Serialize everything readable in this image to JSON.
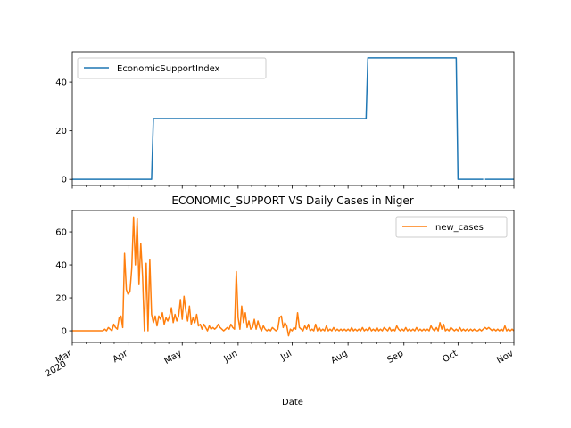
{
  "chart_data": [
    {
      "type": "line",
      "title": "",
      "xlabel": "",
      "ylabel": "",
      "ylim": [
        -2.5,
        52.5
      ],
      "yticks": [
        0,
        20,
        40
      ],
      "xlim": [
        "2020-03-01",
        "2020-11-01"
      ],
      "grid": false,
      "legend_placement": "top-left",
      "series": [
        {
          "name": "EconomicSupportIndex",
          "color": "#1f77b4",
          "points": [
            [
              "2020-03-01",
              0
            ],
            [
              "2020-04-14",
              0
            ],
            [
              "2020-04-15",
              25
            ],
            [
              "2020-08-11",
              25
            ],
            [
              "2020-08-12",
              50
            ],
            [
              "2020-09-30",
              50
            ],
            [
              "2020-10-01",
              0
            ],
            [
              "2020-10-15",
              0
            ],
            null,
            [
              "2020-10-16",
              0
            ],
            [
              "2020-11-01",
              0
            ]
          ]
        }
      ]
    },
    {
      "type": "line",
      "title": "ECONOMIC_SUPPORT VS Daily Cases in Niger",
      "xlabel": "Date",
      "ylabel": "",
      "ylim": [
        -7,
        73
      ],
      "yticks": [
        0,
        20,
        40,
        60
      ],
      "xlim": [
        "2020-03-01",
        "2020-11-01"
      ],
      "xticks": [
        {
          "date": "2020-03-01",
          "label": "Mar",
          "sublabel": "2020"
        },
        {
          "date": "2020-04-01",
          "label": "Apr"
        },
        {
          "date": "2020-05-01",
          "label": "May"
        },
        {
          "date": "2020-06-01",
          "label": "Jun"
        },
        {
          "date": "2020-07-01",
          "label": "Jul"
        },
        {
          "date": "2020-08-01",
          "label": "Aug"
        },
        {
          "date": "2020-09-01",
          "label": "Sep"
        },
        {
          "date": "2020-10-01",
          "label": "Oct"
        },
        {
          "date": "2020-11-01",
          "label": "Nov"
        }
      ],
      "grid": false,
      "legend_placement": "top-right",
      "series": [
        {
          "name": "new_cases",
          "color": "#ff7f0e",
          "points": [
            [
              "2020-03-01",
              0
            ],
            [
              "2020-03-18",
              0
            ],
            [
              "2020-03-19",
              1
            ],
            [
              "2020-03-20",
              0
            ],
            [
              "2020-03-21",
              2
            ],
            [
              "2020-03-22",
              1
            ],
            [
              "2020-03-23",
              0
            ],
            [
              "2020-03-24",
              4
            ],
            [
              "2020-03-25",
              2
            ],
            [
              "2020-03-26",
              1
            ],
            [
              "2020-03-27",
              8
            ],
            [
              "2020-03-28",
              9
            ],
            [
              "2020-03-29",
              2
            ],
            [
              "2020-03-30",
              47
            ],
            [
              "2020-03-31",
              25
            ],
            [
              "2020-04-01",
              22
            ],
            [
              "2020-04-02",
              24
            ],
            [
              "2020-04-03",
              38
            ],
            [
              "2020-04-04",
              69
            ],
            [
              "2020-04-05",
              40
            ],
            [
              "2020-04-06",
              68
            ],
            [
              "2020-04-07",
              28
            ],
            [
              "2020-04-08",
              53
            ],
            [
              "2020-04-09",
              33
            ],
            [
              "2020-04-10",
              0
            ],
            [
              "2020-04-11",
              41
            ],
            [
              "2020-04-12",
              0
            ],
            [
              "2020-04-13",
              43
            ],
            [
              "2020-04-14",
              10
            ],
            [
              "2020-04-15",
              5
            ],
            [
              "2020-04-16",
              9
            ],
            [
              "2020-04-17",
              3
            ],
            [
              "2020-04-18",
              9
            ],
            [
              "2020-04-19",
              7
            ],
            [
              "2020-04-20",
              11
            ],
            [
              "2020-04-21",
              4
            ],
            [
              "2020-04-22",
              8
            ],
            [
              "2020-04-23",
              6
            ],
            [
              "2020-04-24",
              9
            ],
            [
              "2020-04-25",
              14
            ],
            [
              "2020-04-26",
              5
            ],
            [
              "2020-04-27",
              10
            ],
            [
              "2020-04-28",
              6
            ],
            [
              "2020-04-29",
              9
            ],
            [
              "2020-04-30",
              19
            ],
            [
              "2020-05-01",
              7
            ],
            [
              "2020-05-02",
              21
            ],
            [
              "2020-05-03",
              12
            ],
            [
              "2020-05-04",
              6
            ],
            [
              "2020-05-05",
              15
            ],
            [
              "2020-05-06",
              4
            ],
            [
              "2020-05-07",
              8
            ],
            [
              "2020-05-08",
              5
            ],
            [
              "2020-05-09",
              10
            ],
            [
              "2020-05-10",
              3
            ],
            [
              "2020-05-11",
              4
            ],
            [
              "2020-05-12",
              1
            ],
            [
              "2020-05-13",
              4
            ],
            [
              "2020-05-14",
              2
            ],
            [
              "2020-05-15",
              0
            ],
            [
              "2020-05-16",
              3
            ],
            [
              "2020-05-17",
              1
            ],
            [
              "2020-05-18",
              2
            ],
            [
              "2020-05-19",
              1
            ],
            [
              "2020-05-20",
              2
            ],
            [
              "2020-05-21",
              4
            ],
            [
              "2020-05-22",
              2
            ],
            [
              "2020-05-23",
              1
            ],
            [
              "2020-05-24",
              0
            ],
            [
              "2020-05-25",
              1
            ],
            [
              "2020-05-26",
              2
            ],
            [
              "2020-05-27",
              1
            ],
            [
              "2020-05-28",
              4
            ],
            [
              "2020-05-29",
              2
            ],
            [
              "2020-05-30",
              1
            ],
            [
              "2020-05-31",
              36
            ],
            [
              "2020-06-01",
              8
            ],
            [
              "2020-06-02",
              1
            ],
            [
              "2020-06-03",
              15
            ],
            [
              "2020-06-04",
              5
            ],
            [
              "2020-06-05",
              11
            ],
            [
              "2020-06-06",
              2
            ],
            [
              "2020-06-07",
              6
            ],
            [
              "2020-06-08",
              1
            ],
            [
              "2020-06-09",
              2
            ],
            [
              "2020-06-10",
              7
            ],
            [
              "2020-06-11",
              1
            ],
            [
              "2020-06-12",
              6
            ],
            [
              "2020-06-13",
              2
            ],
            [
              "2020-06-14",
              0
            ],
            [
              "2020-06-15",
              3
            ],
            [
              "2020-06-16",
              1
            ],
            [
              "2020-06-17",
              0
            ],
            [
              "2020-06-18",
              1
            ],
            [
              "2020-06-19",
              0
            ],
            [
              "2020-06-20",
              2
            ],
            [
              "2020-06-21",
              1
            ],
            [
              "2020-06-22",
              0
            ],
            [
              "2020-06-23",
              1
            ],
            [
              "2020-06-24",
              8
            ],
            [
              "2020-06-25",
              9
            ],
            [
              "2020-06-26",
              2
            ],
            [
              "2020-06-27",
              5
            ],
            [
              "2020-06-28",
              3
            ],
            [
              "2020-06-29",
              -3
            ],
            [
              "2020-06-30",
              1
            ],
            [
              "2020-07-01",
              0
            ],
            [
              "2020-07-02",
              2
            ],
            [
              "2020-07-03",
              1
            ],
            [
              "2020-07-04",
              11
            ],
            [
              "2020-07-05",
              2
            ],
            [
              "2020-07-06",
              1
            ],
            [
              "2020-07-07",
              0
            ],
            [
              "2020-07-08",
              3
            ],
            [
              "2020-07-09",
              1
            ],
            [
              "2020-07-10",
              4
            ],
            [
              "2020-07-11",
              0
            ],
            [
              "2020-07-12",
              1
            ],
            [
              "2020-07-13",
              0
            ],
            [
              "2020-07-14",
              4
            ],
            [
              "2020-07-15",
              0
            ],
            [
              "2020-07-16",
              2
            ],
            [
              "2020-07-17",
              0
            ],
            [
              "2020-07-18",
              1
            ],
            [
              "2020-07-19",
              0
            ],
            [
              "2020-07-20",
              3
            ],
            [
              "2020-07-21",
              0
            ],
            [
              "2020-07-22",
              1
            ],
            [
              "2020-07-23",
              0
            ],
            [
              "2020-07-24",
              2
            ],
            [
              "2020-07-25",
              0
            ],
            [
              "2020-07-26",
              1
            ],
            [
              "2020-07-27",
              0
            ],
            [
              "2020-07-28",
              1
            ],
            [
              "2020-07-29",
              0
            ],
            [
              "2020-07-30",
              1
            ],
            [
              "2020-07-31",
              0
            ],
            [
              "2020-08-01",
              1
            ],
            [
              "2020-08-02",
              0
            ],
            [
              "2020-08-03",
              2
            ],
            [
              "2020-08-04",
              0
            ],
            [
              "2020-08-05",
              1
            ],
            [
              "2020-08-06",
              0
            ],
            [
              "2020-08-07",
              1
            ],
            [
              "2020-08-08",
              0
            ],
            [
              "2020-08-09",
              2
            ],
            [
              "2020-08-10",
              0
            ],
            [
              "2020-08-11",
              1
            ],
            [
              "2020-08-12",
              0
            ],
            [
              "2020-08-13",
              2
            ],
            [
              "2020-08-14",
              0
            ],
            [
              "2020-08-15",
              1
            ],
            [
              "2020-08-16",
              0
            ],
            [
              "2020-08-17",
              2
            ],
            [
              "2020-08-18",
              0
            ],
            [
              "2020-08-19",
              1
            ],
            [
              "2020-08-20",
              0
            ],
            [
              "2020-08-21",
              2
            ],
            [
              "2020-08-22",
              1
            ],
            [
              "2020-08-23",
              0
            ],
            [
              "2020-08-24",
              2
            ],
            [
              "2020-08-25",
              0
            ],
            [
              "2020-08-26",
              1
            ],
            [
              "2020-08-27",
              0
            ],
            [
              "2020-08-28",
              3
            ],
            [
              "2020-08-29",
              1
            ],
            [
              "2020-08-30",
              0
            ],
            [
              "2020-08-31",
              1
            ],
            [
              "2020-09-01",
              0
            ],
            [
              "2020-09-02",
              2
            ],
            [
              "2020-09-03",
              0
            ],
            [
              "2020-09-04",
              1
            ],
            [
              "2020-09-05",
              0
            ],
            [
              "2020-09-06",
              1
            ],
            [
              "2020-09-07",
              0
            ],
            [
              "2020-09-08",
              2
            ],
            [
              "2020-09-09",
              0
            ],
            [
              "2020-09-10",
              1
            ],
            [
              "2020-09-11",
              0
            ],
            [
              "2020-09-12",
              1
            ],
            [
              "2020-09-13",
              0
            ],
            [
              "2020-09-14",
              1
            ],
            [
              "2020-09-15",
              0
            ],
            [
              "2020-09-16",
              3
            ],
            [
              "2020-09-17",
              1
            ],
            [
              "2020-09-18",
              0
            ],
            [
              "2020-09-19",
              2
            ],
            [
              "2020-09-20",
              0
            ],
            [
              "2020-09-21",
              5
            ],
            [
              "2020-09-22",
              1
            ],
            [
              "2020-09-23",
              4
            ],
            [
              "2020-09-24",
              0
            ],
            [
              "2020-09-25",
              1
            ],
            [
              "2020-09-26",
              0
            ],
            [
              "2020-09-27",
              2
            ],
            [
              "2020-09-28",
              1
            ],
            [
              "2020-09-29",
              0
            ],
            [
              "2020-09-30",
              1
            ],
            [
              "2020-10-01",
              0
            ],
            [
              "2020-10-02",
              2
            ],
            [
              "2020-10-03",
              0
            ],
            [
              "2020-10-04",
              1
            ],
            [
              "2020-10-05",
              0
            ],
            [
              "2020-10-06",
              1
            ],
            [
              "2020-10-07",
              0
            ],
            [
              "2020-10-08",
              1
            ],
            [
              "2020-10-09",
              0
            ],
            [
              "2020-10-10",
              1
            ],
            [
              "2020-10-11",
              0
            ],
            [
              "2020-10-12",
              0
            ],
            [
              "2020-10-13",
              1
            ],
            [
              "2020-10-14",
              0
            ],
            [
              "2020-10-15",
              1
            ],
            [
              "2020-10-16",
              2
            ],
            [
              "2020-10-17",
              1
            ],
            [
              "2020-10-18",
              2
            ],
            [
              "2020-10-19",
              1
            ],
            [
              "2020-10-20",
              0
            ],
            [
              "2020-10-21",
              1
            ],
            [
              "2020-10-22",
              0
            ],
            [
              "2020-10-23",
              1
            ],
            [
              "2020-10-24",
              0
            ],
            [
              "2020-10-25",
              1
            ],
            [
              "2020-10-26",
              0
            ],
            [
              "2020-10-27",
              3
            ],
            [
              "2020-10-28",
              0
            ],
            [
              "2020-10-29",
              1
            ],
            [
              "2020-10-30",
              0
            ],
            [
              "2020-10-31",
              1
            ],
            [
              "2020-11-01",
              0
            ]
          ]
        }
      ]
    }
  ]
}
